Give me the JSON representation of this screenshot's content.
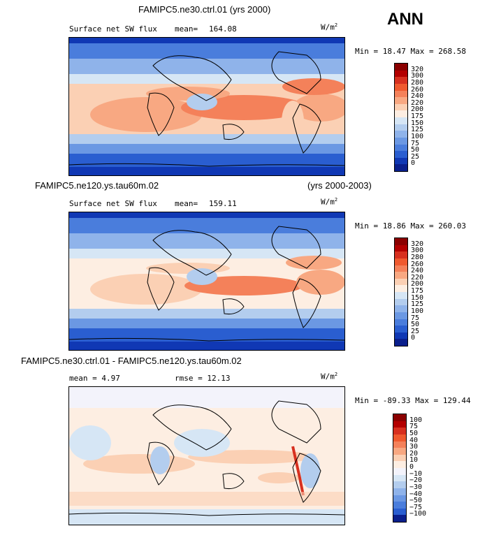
{
  "season": "ANN",
  "panels": [
    {
      "title": "FAMIPC5.ne30.ctrl.01 (yrs 2000)",
      "title_right": "",
      "variable": "Surface net SW flux",
      "stat_label": "mean=",
      "stat_value": "164.08",
      "stat2": "",
      "units": "W/m",
      "units_sup": "2",
      "minmax": "Min = 18.47 Max = 268.58",
      "cbar_levels": [
        "320",
        "300",
        "280",
        "260",
        "240",
        "220",
        "200",
        "175",
        "150",
        "125",
        "100",
        "75",
        "50",
        "25",
        "0"
      ],
      "cbar_colors": [
        "#8b0000",
        "#b30000",
        "#d7301f",
        "#ef5a2f",
        "#f4815a",
        "#f8a882",
        "#fbd0b4",
        "#fdeee2",
        "#d6e6f5",
        "#b3cdee",
        "#8fb3ea",
        "#6b98e3",
        "#4a7ddc",
        "#2a5ed0",
        "#1038b4",
        "#0a1f8c"
      ]
    },
    {
      "title": "FAMIPC5.ne120.ys.tau60m.02",
      "title_right": "(yrs 2000-2003)",
      "variable": "Surface net SW flux",
      "stat_label": "mean=",
      "stat_value": "159.11",
      "stat2": "",
      "units": "W/m",
      "units_sup": "2",
      "minmax": "Min = 18.86 Max = 260.03",
      "cbar_levels": [
        "320",
        "300",
        "280",
        "260",
        "240",
        "220",
        "200",
        "175",
        "150",
        "125",
        "100",
        "75",
        "50",
        "25",
        "0"
      ],
      "cbar_colors": [
        "#8b0000",
        "#b30000",
        "#d7301f",
        "#ef5a2f",
        "#f4815a",
        "#f8a882",
        "#fbd0b4",
        "#fdeee2",
        "#d6e6f5",
        "#b3cdee",
        "#8fb3ea",
        "#6b98e3",
        "#4a7ddc",
        "#2a5ed0",
        "#1038b4",
        "#0a1f8c"
      ]
    },
    {
      "title": "FAMIPC5.ne30.ctrl.01 - FAMIPC5.ne120.ys.tau60m.02",
      "title_right": "",
      "variable": "mean =   4.97",
      "stat_label": "",
      "stat_value": "",
      "stat2": "rmse =  12.13",
      "units": "W/m",
      "units_sup": "2",
      "minmax": "Min = -89.33 Max = 129.44",
      "cbar_levels": [
        "100",
        "75",
        "50",
        "40",
        "30",
        "20",
        "10",
        "0",
        "−10",
        "−20",
        "−30",
        "−40",
        "−50",
        "−75",
        "−100"
      ],
      "cbar_colors": [
        "#8b0000",
        "#b30000",
        "#d7301f",
        "#ef5a2f",
        "#f4815a",
        "#f8a882",
        "#fbd0b4",
        "#fdeee2",
        "#f3f3fb",
        "#d6e6f5",
        "#b3cdee",
        "#8fb3ea",
        "#6b98e3",
        "#4a7ddc",
        "#2a5ed0",
        "#0a1f8c"
      ]
    }
  ],
  "chart_data": [
    {
      "type": "heatmap",
      "title": "FAMIPC5.ne30.ctrl.01 (yrs 2000)",
      "subtitle": "Surface net SW flux",
      "mean": 164.08,
      "min": 18.47,
      "max": 268.58,
      "units": "W/m2",
      "levels": [
        0,
        25,
        50,
        75,
        100,
        125,
        150,
        175,
        200,
        220,
        240,
        260,
        280,
        300,
        320
      ]
    },
    {
      "type": "heatmap",
      "title": "FAMIPC5.ne120.ys.tau60m.02 (yrs 2000-2003)",
      "subtitle": "Surface net SW flux",
      "mean": 159.11,
      "min": 18.86,
      "max": 260.03,
      "units": "W/m2",
      "levels": [
        0,
        25,
        50,
        75,
        100,
        125,
        150,
        175,
        200,
        220,
        240,
        260,
        280,
        300,
        320
      ]
    },
    {
      "type": "heatmap",
      "title": "FAMIPC5.ne30.ctrl.01 - FAMIPC5.ne120.ys.tau60m.02",
      "mean": 4.97,
      "rmse": 12.13,
      "min": -89.33,
      "max": 129.44,
      "units": "W/m2",
      "levels": [
        -100,
        -75,
        -50,
        -40,
        -30,
        -20,
        -10,
        0,
        10,
        20,
        30,
        40,
        50,
        75,
        100
      ]
    }
  ]
}
